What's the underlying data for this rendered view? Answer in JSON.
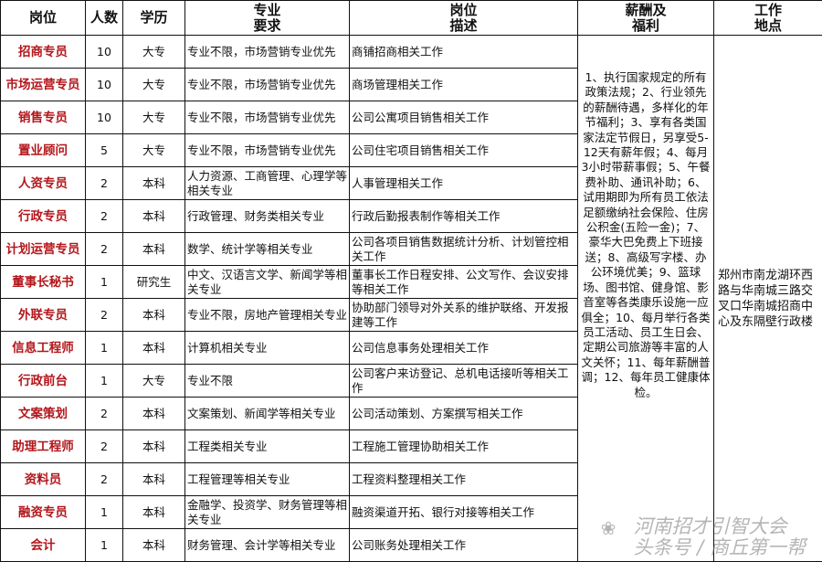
{
  "headers": [
    "岗位",
    "人数",
    "学历",
    "专业\n要求",
    "岗位\n描述",
    "薪酬及\n福利",
    "工作\n地点"
  ],
  "header_lines": {
    "major": [
      "专业",
      "要求"
    ],
    "desc": [
      "岗位",
      "描述"
    ],
    "benefits": [
      "薪酬及",
      "福利"
    ],
    "location": [
      "工作",
      "地点"
    ]
  },
  "rows": [
    {
      "position": "招商专员",
      "count": "10",
      "education": "大专",
      "major": "专业不限，市场营销专业优先",
      "description": "商铺招商相关工作"
    },
    {
      "position": "市场运营专员",
      "count": "10",
      "education": "大专",
      "major": "专业不限，市场营销专业优先",
      "description": "商场管理相关工作"
    },
    {
      "position": "销售专员",
      "count": "10",
      "education": "大专",
      "major": "专业不限，市场营销专业优先",
      "description": "公司公寓项目销售相关工作"
    },
    {
      "position": "置业顾问",
      "count": "5",
      "education": "大专",
      "major": "专业不限，市场营销专业优先",
      "description": "公司住宅项目销售相关工作"
    },
    {
      "position": "人资专员",
      "count": "2",
      "education": "本科",
      "major": "人力资源、工商管理、心理学等相关专业",
      "description": "人事管理相关工作"
    },
    {
      "position": "行政专员",
      "count": "2",
      "education": "本科",
      "major": "行政管理、财务类相关专业",
      "description": "行政后勤报表制作等相关工作"
    },
    {
      "position": "计划运营专员",
      "count": "2",
      "education": "本科",
      "major": "数学、统计学等相关专业",
      "description": "公司各项目销售数据统计分析、计划管控相关工作"
    },
    {
      "position": "董事长秘书",
      "count": "1",
      "education": "研究生",
      "major": "中文、汉语言文学、新闻学等相关专业",
      "description": "董事长工作日程安排、公文写作、会议安排等相关工作"
    },
    {
      "position": "外联专员",
      "count": "2",
      "education": "本科",
      "major": "专业不限，房地产管理相关专业",
      "description": "协助部门领导对外关系的维护联络、开发报建等工作"
    },
    {
      "position": "信息工程师",
      "count": "1",
      "education": "本科",
      "major": "计算机相关专业",
      "description": "公司信息事务处理相关工作"
    },
    {
      "position": "行政前台",
      "count": "1",
      "education": "大专",
      "major": "专业不限",
      "description": "公司客户来访登记、总机电话接听等相关工作"
    },
    {
      "position": "文案策划",
      "count": "2",
      "education": "本科",
      "major": "文案策划、新闻学等相关专业",
      "description": "公司活动策划、方案撰写相关工作"
    },
    {
      "position": "助理工程师",
      "count": "2",
      "education": "本科",
      "major": "工程类相关专业",
      "description": "工程施工管理协助相关工作"
    },
    {
      "position": "资料员",
      "count": "2",
      "education": "本科",
      "major": "工程管理等相关专业",
      "description": "工程资料整理相关工作"
    },
    {
      "position": "融资专员",
      "count": "1",
      "education": "本科",
      "major": "金融学、投资学、财务管理等相关专业",
      "description": "融资渠道开拓、银行对接等相关工作"
    },
    {
      "position": "会计",
      "count": "1",
      "education": "本科",
      "major": "财务管理、会计学等相关专业",
      "description": "公司账务处理相关工作"
    }
  ],
  "benefits": "1、执行国家规定的所有政策法规；2、行业领先的薪酬待遇，多样化的年节福利；3、享有各类国家法定节假日，另享受5-12天有薪年假；4、每月3小时带薪事假；5、午餐费补助、通讯补助；6、试用期即为所有员工依法足额缴纳社会保险、住房公积金(五险一金)；7、豪华大巴免费上下班接送；8、高级写字楼、办公环境优美；9、篮球场、图书馆、健身馆、影音室等各类康乐设施一应俱全；10、每月举行各类员工活动、员工生日会、定期公司旅游等丰富的人文关怀；11、每年薪酬普调；12、每年员工健康体检。",
  "location": "郑州市南龙湖环西路与华南城三路交叉口华南城招商中心及东隔壁行政楼",
  "watermark": {
    "line1": "河南招才引智大会",
    "line2": "头条号 / 商丘第一帮"
  },
  "colors": {
    "position_text": "#b3161b",
    "border": "#111111"
  }
}
